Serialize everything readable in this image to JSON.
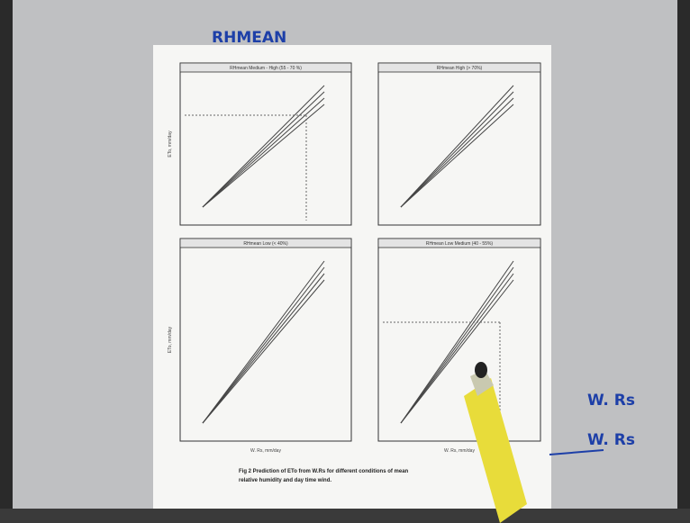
{
  "handwriting": {
    "top_note": "RHMEAN",
    "right_note_1": "W. Rs",
    "right_note_2": "W. Rs"
  },
  "panels": [
    {
      "title": "RHmean Medium - High (55 - 70 %)"
    },
    {
      "title": "RHmean High (> 70%)"
    },
    {
      "title": "RHmean Low (< 40%)"
    },
    {
      "title": "RHmean Low Medium (40 - 55%)"
    }
  ],
  "x_label": "W. Rs, mm/day",
  "y_label": "ETo, mm/day",
  "caption": [
    "Fig 2 Prediction of ETo from W.Rs for different conditions of mean",
    "relative humidity and day time wind."
  ]
}
